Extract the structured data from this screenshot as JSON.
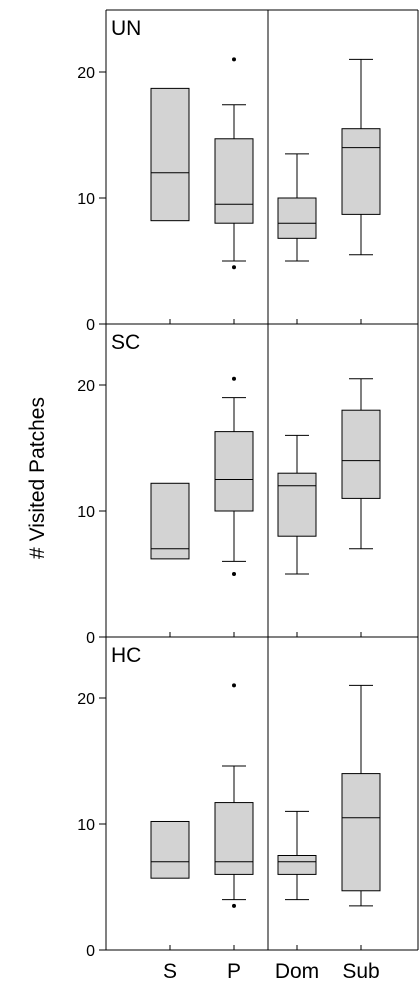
{
  "chart_data": {
    "type": "boxplot",
    "ylabel": "# Visited Patches",
    "categories": [
      "S",
      "P",
      "Dom",
      "Sub"
    ],
    "ylim": [
      0,
      25
    ],
    "yticks": [
      0,
      10,
      20
    ],
    "panels": [
      {
        "label": "UN",
        "boxes": [
          {
            "category": "S",
            "q1": 8.2,
            "median": 12,
            "q3": 18.7,
            "whisker_low": null,
            "whisker_high": null,
            "outliers": []
          },
          {
            "category": "P",
            "q1": 8,
            "median": 9.5,
            "q3": 14.7,
            "whisker_low": 5,
            "whisker_high": 17.4,
            "outliers": [
              4.5,
              21
            ]
          },
          {
            "category": "Dom",
            "q1": 6.8,
            "median": 8,
            "q3": 10,
            "whisker_low": 5,
            "whisker_high": 13.5,
            "outliers": []
          },
          {
            "category": "Sub",
            "q1": 8.7,
            "median": 14,
            "q3": 15.5,
            "whisker_low": 5.5,
            "whisker_high": 21,
            "outliers": []
          }
        ]
      },
      {
        "label": "SC",
        "boxes": [
          {
            "category": "S",
            "q1": 6.2,
            "median": 7,
            "q3": 12.2,
            "whisker_low": null,
            "whisker_high": null,
            "outliers": []
          },
          {
            "category": "P",
            "q1": 10,
            "median": 12.5,
            "q3": 16.3,
            "whisker_low": 6,
            "whisker_high": 19,
            "outliers": [
              5,
              20.5
            ]
          },
          {
            "category": "Dom",
            "q1": 8,
            "median": 12,
            "q3": 13,
            "whisker_low": 5,
            "whisker_high": 16,
            "outliers": []
          },
          {
            "category": "Sub",
            "q1": 11,
            "median": 14,
            "q3": 18,
            "whisker_low": 7,
            "whisker_high": 20.5,
            "outliers": []
          }
        ]
      },
      {
        "label": "HC",
        "boxes": [
          {
            "category": "S",
            "q1": 5.7,
            "median": 7,
            "q3": 10.2,
            "whisker_low": null,
            "whisker_high": null,
            "outliers": []
          },
          {
            "category": "P",
            "q1": 6,
            "median": 7,
            "q3": 11.7,
            "whisker_low": 4,
            "whisker_high": 14.6,
            "outliers": [
              3.5,
              21
            ]
          },
          {
            "category": "Dom",
            "q1": 6,
            "median": 7,
            "q3": 7.5,
            "whisker_low": 4,
            "whisker_high": 11,
            "outliers": []
          },
          {
            "category": "Sub",
            "q1": 4.7,
            "median": 10.5,
            "q3": 14,
            "whisker_low": 3.5,
            "whisker_high": 21,
            "outliers": []
          }
        ]
      }
    ],
    "colors": {
      "box_fill": "#d3d3d3",
      "stroke": "#000000"
    }
  }
}
